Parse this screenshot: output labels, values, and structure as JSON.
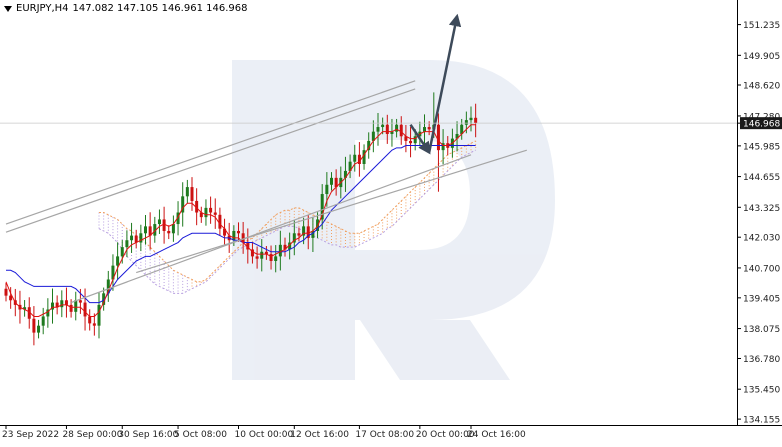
{
  "ticker": {
    "symbol": "EURJPY,H4",
    "ohlc": "147.082 147.105 146.961 146.968",
    "current_price": "146.968"
  },
  "colors": {
    "bull": "#1e7a1e",
    "bear": "#cc1111",
    "tenkan": "#e01010",
    "kijun": "#1a1ad8",
    "cloud_a": "#f0a060",
    "cloud_b": "#b8a0e0",
    "channel": "#a6a6a6",
    "arrow": "#3d4a5a",
    "watermark": "#e9edf5",
    "price_box": "#1a1a1a"
  },
  "chart_data": {
    "type": "candlestick",
    "title": "EURJPY,H4",
    "ylim": [
      133.9,
      152.3
    ],
    "y_ticks": [
      "151.235",
      "149.905",
      "148.620",
      "147.280",
      "146.968",
      "145.985",
      "144.655",
      "143.325",
      "142.030",
      "140.700",
      "139.405",
      "138.075",
      "136.780",
      "135.450",
      "134.155"
    ],
    "x_ticks": [
      "23 Sep 2022",
      "28 Sep 00:00",
      "30 Sep 16:00",
      "5 Oct 08:00",
      "10 Oct 00:00",
      "12 Oct 16:00",
      "17 Oct 08:00",
      "20 Oct 00:00",
      "24 Oct 16:00"
    ],
    "candles_close": [
      139.5,
      139.3,
      139.1,
      138.9,
      139.0,
      138.5,
      137.9,
      138.2,
      138.6,
      138.9,
      139.2,
      139.0,
      139.3,
      139.1,
      138.8,
      139.3,
      139.2,
      138.6,
      138.3,
      138.2,
      139.1,
      139.6,
      140.2,
      140.8,
      141.2,
      141.6,
      141.9,
      142.1,
      141.8,
      142.2,
      142.5,
      142.1,
      142.6,
      142.8,
      142.3,
      142.2,
      142.6,
      143.1,
      143.8,
      144.2,
      143.6,
      143.1,
      142.9,
      143.3,
      143.1,
      143.0,
      142.4,
      142.1,
      141.9,
      142.3,
      142.2,
      141.8,
      141.5,
      141.2,
      141.1,
      141.4,
      141.3,
      141.0,
      141.2,
      141.7,
      141.5,
      141.8,
      142.2,
      142.1,
      142.5,
      142.0,
      142.3,
      142.8,
      143.9,
      144.3,
      144.6,
      144.2,
      144.6,
      144.9,
      145.3,
      145.6,
      145.2,
      145.8,
      146.2,
      146.6,
      146.8,
      146.9,
      146.5,
      146.6,
      146.9,
      146.4,
      146.2,
      146.1,
      146.4,
      146.6,
      146.8,
      146.7,
      146.9,
      145.8,
      146.1,
      145.9,
      146.3,
      146.5,
      146.9,
      147.1,
      147.2,
      146.968
    ],
    "tenkan": [
      140.1,
      139.6,
      139.2,
      139.0,
      138.9,
      138.8,
      138.6,
      138.6,
      138.7,
      138.8,
      139.0,
      139.0,
      139.1,
      139.1,
      139.0,
      139.0,
      139.0,
      138.8,
      138.6,
      138.6,
      138.8,
      139.2,
      139.7,
      140.2,
      140.7,
      141.1,
      141.5,
      141.7,
      141.8,
      141.9,
      142.0,
      142.1,
      142.3,
      142.5,
      142.6,
      142.5,
      142.6,
      142.9,
      143.3,
      143.5,
      143.5,
      143.3,
      143.1,
      143.0,
      143.0,
      142.9,
      142.6,
      142.4,
      142.1,
      142.0,
      142.0,
      141.8,
      141.6,
      141.4,
      141.3,
      141.3,
      141.3,
      141.2,
      141.3,
      141.4,
      141.5,
      141.7,
      141.9,
      142.0,
      142.2,
      142.2,
      142.3,
      142.5,
      143.0,
      143.6,
      144.0,
      144.2,
      144.4,
      144.6,
      144.9,
      145.2,
      145.3,
      145.6,
      145.9,
      146.2,
      146.4,
      146.6,
      146.6,
      146.6,
      146.7,
      146.6,
      146.4,
      146.3,
      146.3,
      146.5,
      146.6,
      146.6,
      146.6,
      146.2,
      146.0,
      146.0,
      146.1,
      146.3,
      146.5,
      146.7,
      146.9,
      146.9
    ],
    "kijun": [
      140.6,
      140.6,
      140.5,
      140.3,
      140.1,
      140.0,
      139.9,
      139.9,
      139.9,
      139.9,
      139.9,
      139.9,
      139.9,
      139.9,
      139.9,
      139.8,
      139.6,
      139.4,
      139.2,
      139.2,
      139.2,
      139.3,
      139.6,
      139.9,
      140.2,
      140.4,
      140.6,
      140.8,
      141.0,
      141.1,
      141.2,
      141.2,
      141.3,
      141.4,
      141.5,
      141.6,
      141.7,
      141.8,
      142.0,
      142.1,
      142.2,
      142.2,
      142.2,
      142.2,
      142.2,
      142.2,
      142.1,
      142.0,
      142.0,
      141.9,
      141.9,
      141.8,
      141.8,
      141.8,
      141.7,
      141.6,
      141.5,
      141.4,
      141.4,
      141.4,
      141.4,
      141.5,
      141.6,
      141.8,
      141.9,
      142.1,
      142.2,
      142.4,
      142.6,
      142.9,
      143.2,
      143.4,
      143.6,
      143.8,
      144.0,
      144.2,
      144.4,
      144.6,
      144.8,
      145.0,
      145.2,
      145.4,
      145.6,
      145.8,
      145.9,
      145.9,
      146.0,
      146.0,
      146.0,
      146.0,
      146.0,
      146.0,
      146.0,
      146.0,
      146.0,
      146.0,
      146.0,
      146.0,
      146.0,
      146.0,
      146.0,
      146.0
    ],
    "cloud_top": [
      143.1,
      143.1,
      143.0,
      142.9,
      142.8,
      142.6,
      142.4,
      142.3,
      142.1,
      142.0,
      141.8,
      141.6,
      141.4,
      141.2,
      141.0,
      140.8,
      140.6,
      140.5,
      140.4,
      140.3,
      140.2,
      140.1,
      140.1,
      140.2,
      140.4,
      140.6,
      140.8,
      141.0,
      141.2,
      141.4,
      141.6,
      141.8,
      141.9,
      142.0,
      142.2,
      142.4,
      142.6,
      142.8,
      143.0,
      143.1,
      143.2,
      143.2,
      143.3,
      143.3,
      143.2,
      143.1,
      143.0,
      142.9,
      142.8,
      142.7,
      142.6,
      142.5,
      142.4,
      142.3,
      142.2,
      142.2,
      142.2,
      142.3,
      142.4,
      142.5,
      142.6,
      142.8,
      143.0,
      143.2,
      143.4,
      143.6,
      143.8,
      144.0,
      144.2,
      144.4,
      144.6,
      144.8,
      145.0,
      145.2,
      145.4,
      145.6,
      145.7,
      145.8,
      145.9,
      146.0,
      146.1,
      146.2
    ],
    "cloud_bottom": [
      142.4,
      142.3,
      142.2,
      142.0,
      141.8,
      141.5,
      141.2,
      141.0,
      140.8,
      140.6,
      140.4,
      140.2,
      140.0,
      139.9,
      139.8,
      139.7,
      139.6,
      139.6,
      139.6,
      139.7,
      139.8,
      139.9,
      140.0,
      140.1,
      140.3,
      140.5,
      140.7,
      140.9,
      141.1,
      141.3,
      141.5,
      141.6,
      141.7,
      141.8,
      141.9,
      142.0,
      142.1,
      142.2,
      142.3,
      142.4,
      142.5,
      142.5,
      142.5,
      142.4,
      142.3,
      142.2,
      142.1,
      142.0,
      141.9,
      141.8,
      141.7,
      141.7,
      141.6,
      141.6,
      141.6,
      141.6,
      141.7,
      141.8,
      141.9,
      142.0,
      142.1,
      142.2,
      142.4,
      142.5,
      142.7,
      142.9,
      143.1,
      143.3,
      143.5,
      143.7,
      143.9,
      144.1,
      144.3,
      144.5,
      144.7,
      144.9,
      145.1,
      145.3,
      145.5,
      145.6,
      145.7,
      145.8
    ],
    "channel_upper": [
      [
        0,
        142.6
      ],
      [
        88,
        148.8
      ]
    ],
    "channel_lower": [
      [
        14,
        139.2
      ],
      [
        100,
        145.6
      ]
    ],
    "channel_lower2": [
      [
        28,
        140.5
      ],
      [
        112,
        145.8
      ]
    ],
    "forecast": [
      [
        87,
        146.9
      ],
      [
        91,
        145.7
      ],
      [
        97,
        151.6
      ]
    ]
  }
}
